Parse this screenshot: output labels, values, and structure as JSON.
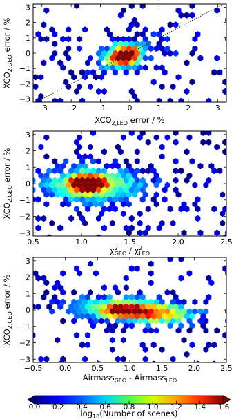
{
  "chart_data": [
    {
      "type": "heatmap",
      "subtype": "hexbin",
      "xlabel": "XCO2,LEO error / %",
      "ylabel": "XCO2,GEO error / %",
      "xlim": [
        -3.3,
        3.3
      ],
      "ylim": [
        -3.2,
        3.2
      ],
      "xticks": [
        -3,
        -2,
        -1,
        0,
        1,
        2,
        3
      ],
      "yticks": [
        -3,
        -2,
        -1,
        0,
        1,
        2,
        3
      ],
      "reference_line": "1:1 dotted",
      "density_peak": [
        -0.2,
        -0.2
      ],
      "max_log_count": 1.6
    },
    {
      "type": "heatmap",
      "subtype": "hexbin",
      "xlabel": "χ²GEO / χ²LEO",
      "ylabel": "XCO2,GEO error / %",
      "xlim": [
        0.5,
        2.5
      ],
      "ylim": [
        -3.2,
        3.2
      ],
      "xticks": [
        0.5,
        1.0,
        1.5,
        2.0,
        2.5
      ],
      "yticks": [
        -3,
        -2,
        -1,
        0,
        1,
        2,
        3
      ],
      "density_peak": [
        1.05,
        0.0
      ],
      "max_log_count": 1.6
    },
    {
      "type": "heatmap",
      "subtype": "hexbin",
      "xlabel": "AirmassGEO - AirmassLEO",
      "ylabel": "XCO2,GEO error / %",
      "xlim": [
        -0.5,
        2.5
      ],
      "ylim": [
        -3.2,
        3.2
      ],
      "xticks": [
        -0.5,
        0.0,
        0.5,
        1.0,
        1.5,
        2.0,
        2.5
      ],
      "yticks": [
        -3,
        -2,
        -1,
        0,
        1,
        2,
        3
      ],
      "density_peak": [
        0.9,
        -0.1
      ],
      "max_log_count": 1.6
    }
  ],
  "colorbar": {
    "label": "log10(Number of scenes)",
    "range": [
      0.0,
      1.6
    ],
    "ticks": [
      "0.0",
      "0.2",
      "0.4",
      "0.6",
      "0.8",
      "1.0",
      "1.2",
      "1.4",
      "1.6"
    ],
    "colormap": "jet",
    "extend": "both"
  },
  "panels": [
    {
      "xtick_labels": [
        "−3",
        "−2",
        "−1",
        "0",
        "1",
        "2",
        "3"
      ],
      "ytick_labels": [
        "3",
        "2",
        "1",
        "0",
        "−1",
        "−2",
        "−3"
      ],
      "xlabel": {
        "main": "XCO",
        "sub1": "2,LEO",
        "rest": " error / %"
      },
      "ylabel": {
        "main": "XCO",
        "sub1": "2,GEO",
        "rest": " error / %"
      }
    },
    {
      "xtick_labels": [
        "0.5",
        "1.0",
        "1.5",
        "2.0",
        "2.5"
      ],
      "ytick_labels": [
        "3",
        "2",
        "1",
        "0",
        "−1",
        "−2",
        "−3"
      ],
      "xlabel": {
        "main": "χ",
        "sup1": "2",
        "sub1": "GEO",
        "sep": " / χ",
        "sup2": "2",
        "sub2": "LEO"
      },
      "ylabel": {
        "main": "XCO",
        "sub1": "2,GEO",
        "rest": " error / %"
      }
    },
    {
      "xtick_labels": [
        "−0.5",
        "0.0",
        "0.5",
        "1.0",
        "1.5",
        "2.0",
        "2.5"
      ],
      "ytick_labels": [
        "3",
        "2",
        "1",
        "0",
        "−1",
        "−2",
        "−3"
      ],
      "xlabel": {
        "main": "Airmass",
        "sub1": "GEO",
        "sep": " - Airmass",
        "sub2": "LEO"
      },
      "ylabel": {
        "main": "XCO",
        "sub1": "2,GEO",
        "rest": " error / %"
      }
    }
  ],
  "colorbar_label": {
    "main": "log",
    "sub1": "10",
    "rest": "(Number of scenes)"
  }
}
